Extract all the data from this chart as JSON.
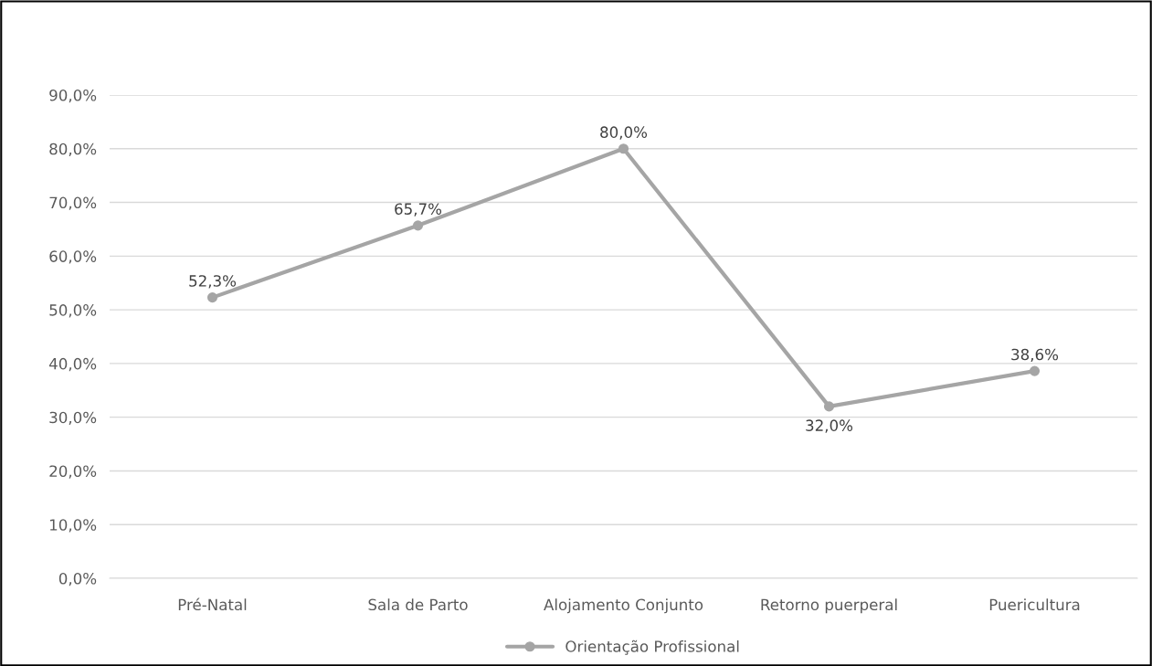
{
  "chart_data": {
    "type": "line",
    "categories": [
      "Pré-Natal",
      "Sala de Parto",
      "Alojamento Conjunto",
      "Retorno puerperal",
      "Puericultura"
    ],
    "series": [
      {
        "name": "Orientação Profissional",
        "color": "#a5a5a5",
        "values": [
          52.3,
          65.7,
          80.0,
          32.0,
          38.6
        ],
        "value_labels": [
          "52,3%",
          "65,7%",
          "80,0%",
          "32,0%",
          "38,6%"
        ]
      }
    ],
    "ylim": [
      0,
      90
    ],
    "yticks": [
      {
        "value": 0,
        "label": "0,0%"
      },
      {
        "value": 10,
        "label": "10,0%"
      },
      {
        "value": 20,
        "label": "20,0%"
      },
      {
        "value": 30,
        "label": "30,0%"
      },
      {
        "value": 40,
        "label": "40,0%"
      },
      {
        "value": 50,
        "label": "50,0%"
      },
      {
        "value": 60,
        "label": "60,0%"
      },
      {
        "value": 70,
        "label": "70,0%"
      },
      {
        "value": 80,
        "label": "80,0%"
      },
      {
        "value": 90,
        "label": "90,0%"
      }
    ],
    "grid": "y",
    "legend": "bottom",
    "marker": "circle",
    "line_style": "solid"
  }
}
